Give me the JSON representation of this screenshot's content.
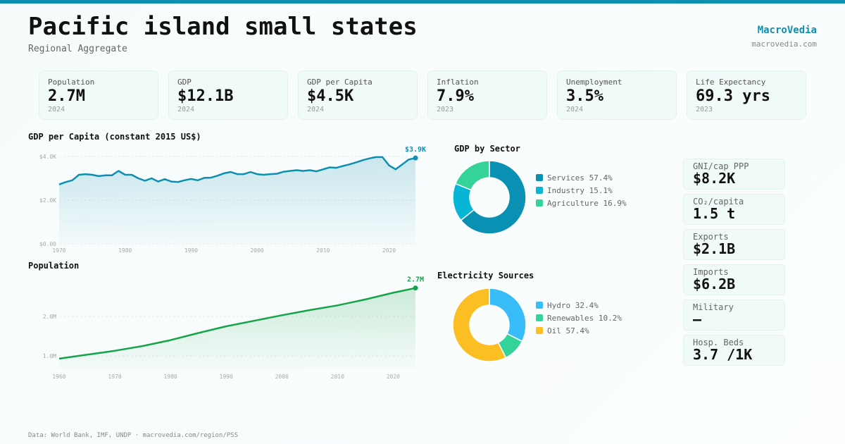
{
  "header": {
    "title": "Pacific island small states",
    "subtitle": "Regional Aggregate",
    "brand": "MacroVedia",
    "brand_url": "macrovedia.com"
  },
  "stats": [
    {
      "label": "Population",
      "value": "2.7M",
      "year": "2024"
    },
    {
      "label": "GDP",
      "value": "$12.1B",
      "year": "2024"
    },
    {
      "label": "GDP per Capita",
      "value": "$4.5K",
      "year": "2024"
    },
    {
      "label": "Inflation",
      "value": "7.9%",
      "year": "2023"
    },
    {
      "label": "Unemployment",
      "value": "3.5%",
      "year": "2024"
    },
    {
      "label": "Life Expectancy",
      "value": "69.3 yrs",
      "year": "2023"
    }
  ],
  "side_stats": [
    {
      "label": "GNI/cap PPP",
      "value": "$8.2K"
    },
    {
      "label": "CO₂/capita",
      "value": "1.5 t"
    },
    {
      "label": "Exports",
      "value": "$2.1B"
    },
    {
      "label": "Imports",
      "value": "$6.2B"
    },
    {
      "label": "Military",
      "value": "—"
    },
    {
      "label": "Hosp. Beds",
      "value": "3.7 /1K"
    }
  ],
  "footer": "Data: World Bank, IMF, UNDP · macrovedia.com/region/PSS",
  "chart_data": [
    {
      "type": "area",
      "title": "GDP per Capita (constant 2015 US$)",
      "color": "#0e8fb0",
      "ylim": [
        0,
        4000
      ],
      "yticks": [
        "$0.00",
        "$2.0K",
        "$4.0K"
      ],
      "ytick_values": [
        0,
        2000,
        4000
      ],
      "xticks": [
        "1970",
        "1980",
        "1990",
        "2000",
        "2010",
        "2020"
      ],
      "end_label": "$3.9K",
      "x": [
        1970,
        1971,
        1972,
        1973,
        1974,
        1975,
        1976,
        1977,
        1978,
        1979,
        1980,
        1981,
        1982,
        1983,
        1984,
        1985,
        1986,
        1987,
        1988,
        1989,
        1990,
        1991,
        1992,
        1993,
        1994,
        1995,
        1996,
        1997,
        1998,
        1999,
        2000,
        2001,
        2002,
        2003,
        2004,
        2005,
        2006,
        2007,
        2008,
        2009,
        2010,
        2011,
        2012,
        2013,
        2014,
        2015,
        2016,
        2017,
        2018,
        2019,
        2020,
        2021,
        2022,
        2023,
        2024
      ],
      "y": [
        2720,
        2830,
        2910,
        3160,
        3190,
        3160,
        3100,
        3140,
        3140,
        3340,
        3160,
        3160,
        3000,
        2890,
        3000,
        2850,
        2960,
        2850,
        2830,
        2910,
        2970,
        2910,
        3020,
        3030,
        3120,
        3230,
        3290,
        3190,
        3190,
        3290,
        3190,
        3160,
        3190,
        3210,
        3300,
        3340,
        3370,
        3340,
        3370,
        3320,
        3410,
        3500,
        3480,
        3560,
        3640,
        3730,
        3830,
        3910,
        3970,
        3970,
        3590,
        3410,
        3640,
        3860,
        3930
      ]
    },
    {
      "type": "area",
      "title": "Population",
      "color": "#16a34a",
      "yticks": [
        "1.0M",
        "2.0M"
      ],
      "ytick_values": [
        1.0,
        2.0
      ],
      "xticks": [
        "1960",
        "1970",
        "1980",
        "1990",
        "2000",
        "2010",
        "2020"
      ],
      "end_label": "2.7M",
      "x": [
        1960,
        1965,
        1970,
        1975,
        1980,
        1985,
        1990,
        1995,
        2000,
        2005,
        2010,
        2015,
        2020,
        2024
      ],
      "y": [
        0.93,
        1.03,
        1.13,
        1.25,
        1.4,
        1.58,
        1.75,
        1.89,
        2.03,
        2.16,
        2.28,
        2.43,
        2.6,
        2.72
      ]
    },
    {
      "type": "pie",
      "title": "GDP by Sector",
      "labels": [
        "Services 57.4%",
        "Industry 15.1%",
        "Agriculture 16.9%"
      ],
      "values": [
        57.4,
        15.1,
        16.9
      ],
      "colors": [
        "#0891b2",
        "#06b6d4",
        "#34d399"
      ]
    },
    {
      "type": "pie",
      "title": "Electricity Sources",
      "labels": [
        "Hydro 32.4%",
        "Renewables 10.2%",
        "Oil 57.4%"
      ],
      "values": [
        32.4,
        10.2,
        57.4
      ],
      "colors": [
        "#38bdf8",
        "#34d399",
        "#fbbf24"
      ]
    }
  ]
}
